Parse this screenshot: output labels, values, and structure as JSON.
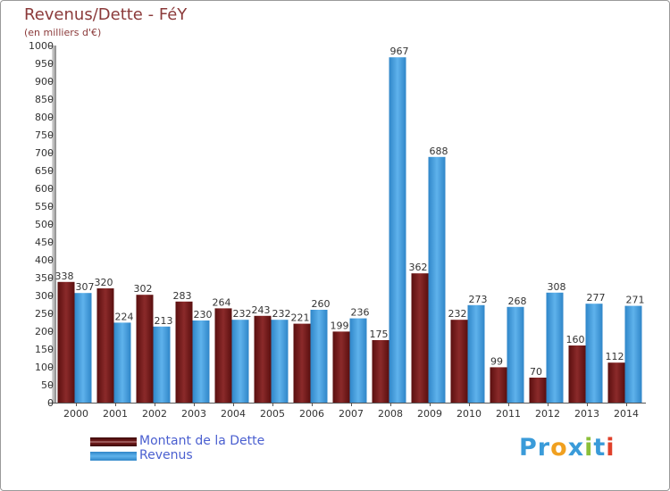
{
  "chart_data": {
    "type": "bar",
    "title": "Revenus/Dette - FéY",
    "subtitle": "(en milliers d'€)",
    "categories": [
      "2000",
      "2001",
      "2002",
      "2003",
      "2004",
      "2005",
      "2006",
      "2007",
      "2008",
      "2009",
      "2010",
      "2011",
      "2012",
      "2013",
      "2014"
    ],
    "series": [
      {
        "name": "Montant de la Dette",
        "color": "#7a1f1f",
        "values": [
          338,
          320,
          302,
          283,
          264,
          243,
          221,
          199,
          175,
          362,
          232,
          99,
          70,
          160,
          112
        ]
      },
      {
        "name": "Revenus",
        "color": "#4aa3e0",
        "values": [
          307,
          224,
          213,
          230,
          232,
          232,
          260,
          236,
          967,
          688,
          273,
          268,
          308,
          277,
          271
        ]
      }
    ],
    "ylim": [
      0,
      1000
    ],
    "ytick_step": 50,
    "grid": false,
    "legend_position": "bottom-left"
  },
  "logo": {
    "text": "Proxiti",
    "letters": [
      {
        "ch": "P",
        "color": "#3a9bd9"
      },
      {
        "ch": "r",
        "color": "#3a9bd9"
      },
      {
        "ch": "o",
        "color": "#f0a020"
      },
      {
        "ch": "x",
        "color": "#3a9bd9"
      },
      {
        "ch": "i",
        "color": "#8bbf3a"
      },
      {
        "ch": "t",
        "color": "#3a9bd9"
      },
      {
        "ch": "i",
        "color": "#e0402a"
      }
    ]
  }
}
